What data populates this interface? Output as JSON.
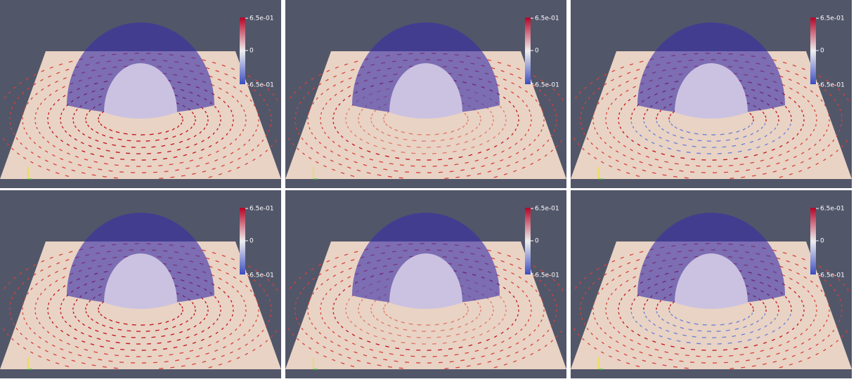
{
  "panels": [
    {
      "colorbar": {
        "max": "6.5e-01",
        "mid": "0",
        "min": "-6.5e-01"
      }
    },
    {
      "colorbar": {
        "max": "6.5e-01",
        "mid": "0",
        "min": "-6.5e-01"
      }
    },
    {
      "colorbar": {
        "max": "6.5e-01",
        "mid": "0",
        "min": "-6.5e-01"
      }
    },
    {
      "colorbar": {
        "max": "6.5e-01",
        "mid": "0",
        "min": "-6.5e-01"
      }
    },
    {
      "colorbar": {
        "max": "6.5e-01",
        "mid": "0",
        "min": "-6.5e-01"
      }
    },
    {
      "colorbar": {
        "max": "6.5e-01",
        "mid": "0",
        "min": "-6.5e-01"
      }
    }
  ]
}
